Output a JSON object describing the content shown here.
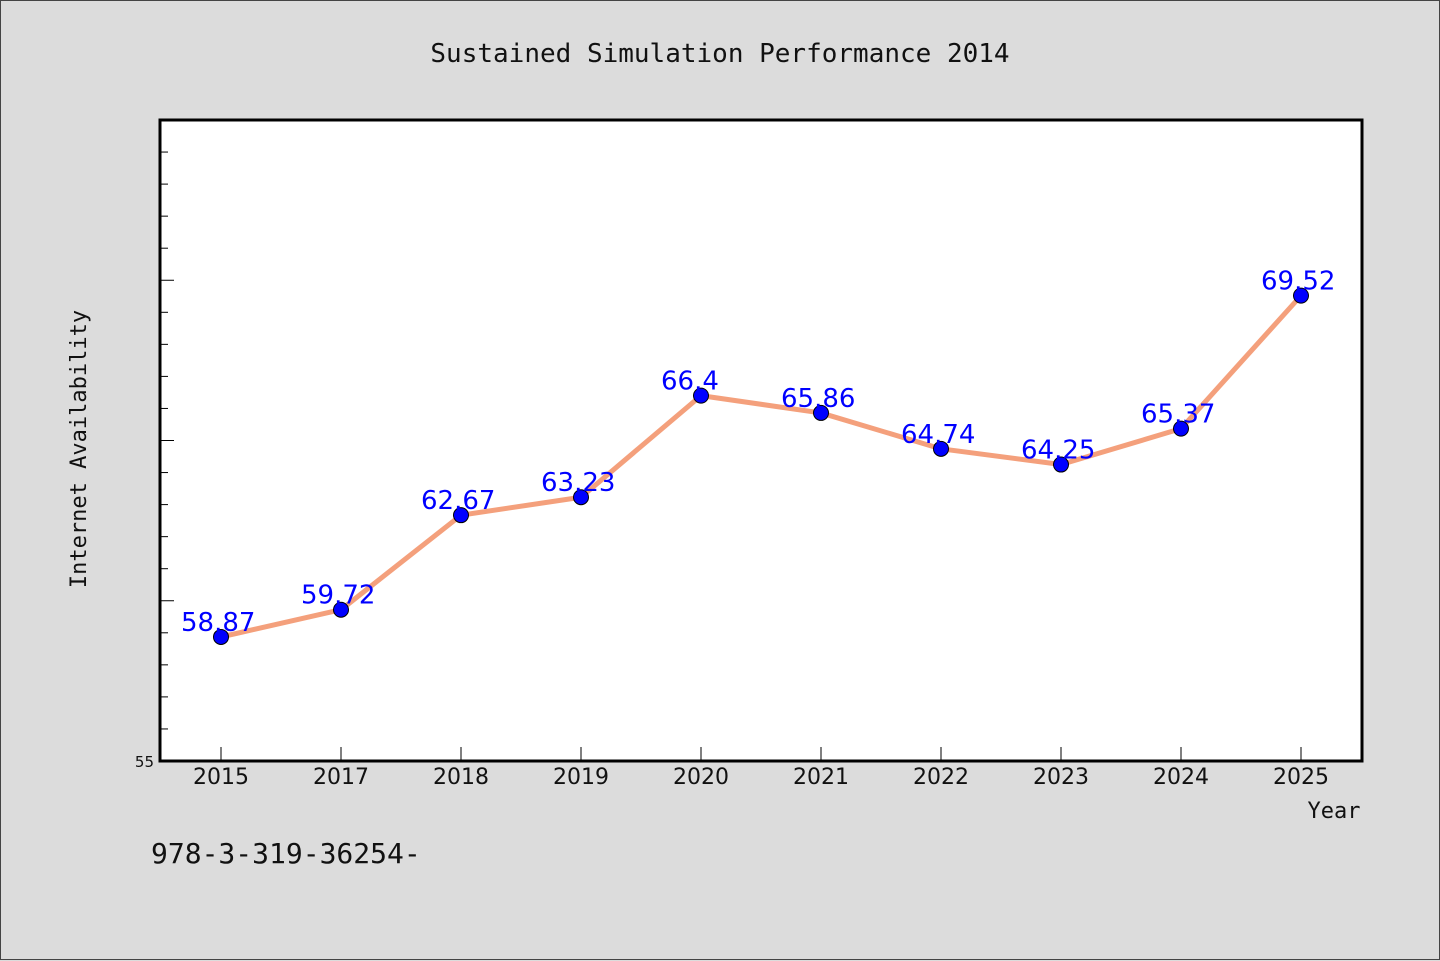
{
  "chart_data": {
    "type": "line",
    "title": "Sustained Simulation Performance 2014",
    "xlabel": "Year",
    "ylabel": "Internet Availability",
    "categories": [
      "2015",
      "2017",
      "2018",
      "2019",
      "2020",
      "2021",
      "2022",
      "2023",
      "2024",
      "2025"
    ],
    "series": [
      {
        "values": [
          58.87,
          59.72,
          62.67,
          63.23,
          66.4,
          65.86,
          64.74,
          64.25,
          65.37,
          69.52
        ],
        "line_color": "#f4a07c",
        "marker_color": "#0000ff"
      }
    ],
    "data_labels": [
      "58.87",
      "59.72",
      "62.67",
      "63.23",
      "66.4",
      "65.86",
      "64.74",
      "64.25",
      "65.37",
      "69.52"
    ],
    "ylim": [
      55,
      75
    ],
    "y_tick_labels": [
      "55"
    ],
    "grid": false,
    "legend": "none"
  },
  "footnote": "978-3-319-36254-",
  "colors": {
    "background": "#dcdcdc",
    "plot_background": "#ffffff",
    "line": "#f4a07c",
    "marker": "#0000ff",
    "data_label": "#0000ff"
  }
}
